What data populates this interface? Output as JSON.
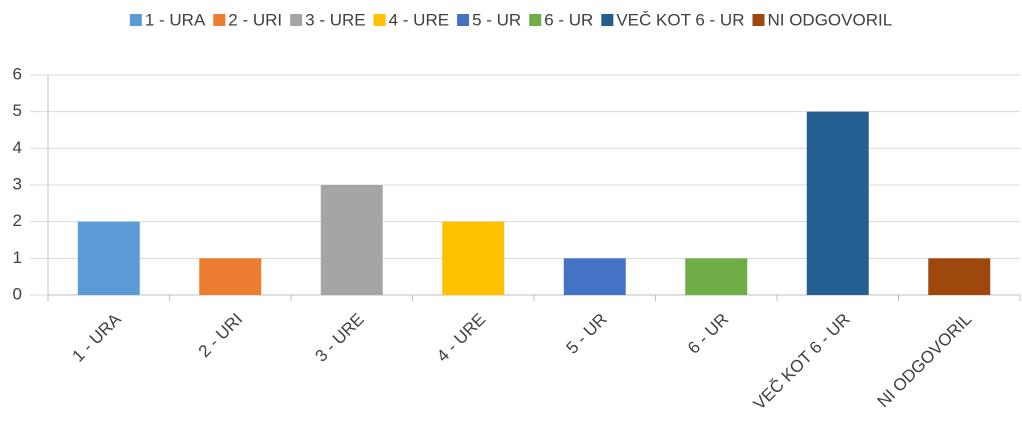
{
  "chart_data": {
    "type": "bar",
    "categories": [
      "1 - URA",
      "2 - URI",
      "3 - URE",
      "4 - URE",
      "5 - UR",
      "6 - UR",
      "VEČ KOT 6 - UR",
      "NI ODGOVORIL"
    ],
    "values": [
      2,
      1,
      3,
      2,
      1,
      1,
      5,
      1
    ],
    "colors": [
      "#5b9bd5",
      "#ed7d31",
      "#a5a5a5",
      "#ffc000",
      "#4472c4",
      "#70ad47",
      "#255e91",
      "#9e480e"
    ],
    "ylim": [
      0,
      6
    ],
    "yticks": [
      0,
      1,
      2,
      3,
      4,
      5,
      6
    ],
    "grid": true,
    "legend": "top"
  }
}
